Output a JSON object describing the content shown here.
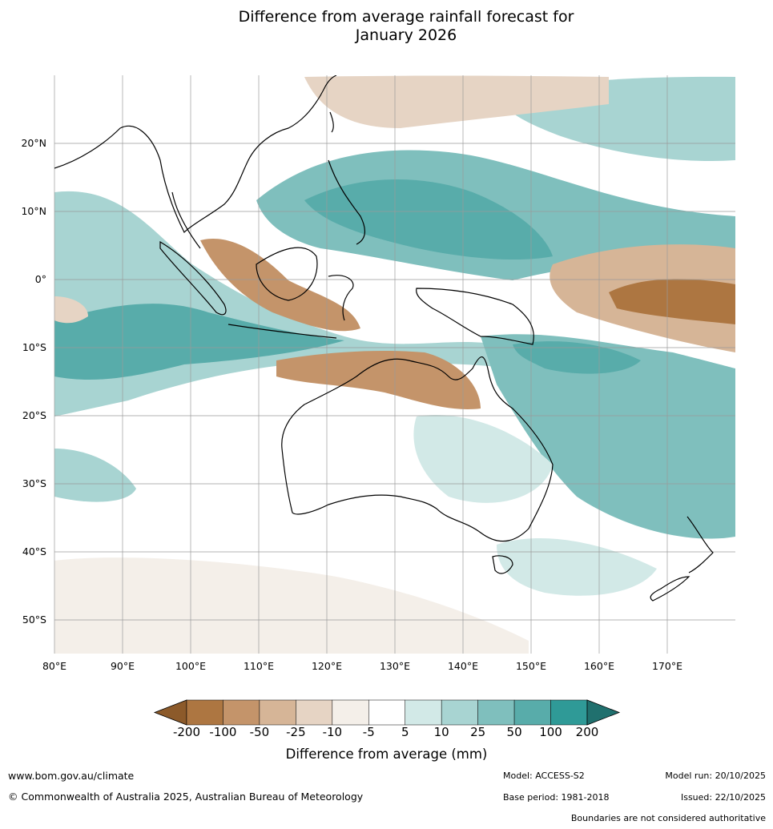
{
  "title": {
    "line1": "Difference from average rainfall forecast for",
    "line2": "January 2026"
  },
  "map": {
    "region": "Indo-Pacific and Australia",
    "lon_range": [
      80,
      180
    ],
    "lat_range": [
      -55,
      30
    ],
    "lon_ticks": [
      "80°E",
      "90°E",
      "100°E",
      "110°E",
      "120°E",
      "130°E",
      "140°E",
      "150°E",
      "160°E",
      "170°E"
    ],
    "lat_ticks": [
      "20°N",
      "10°N",
      "0°",
      "10°S",
      "20°S",
      "30°S",
      "40°S",
      "50°S"
    ]
  },
  "colorbar": {
    "tick_labels": [
      "-200",
      "-100",
      "-50",
      "-25",
      "-10",
      "-5",
      "5",
      "10",
      "25",
      "50",
      "100",
      "200"
    ],
    "colors": [
      "#8c5a2a",
      "#ad7641",
      "#c4946a",
      "#d6b597",
      "#e6d4c4",
      "#f4efe9",
      "#ffffff",
      "#d2e9e7",
      "#a8d4d2",
      "#7fbfbd",
      "#58acaa",
      "#2f9a97",
      "#20706e"
    ],
    "title": "Difference from average (mm)"
  },
  "footer": {
    "website": "www.bom.gov.au/climate",
    "copyright": "© Commonwealth of Australia 2025, Australian Bureau of Meteorology",
    "model": "Model: ACCESS-S2",
    "base_period": "Base period: 1981-2018",
    "model_run": "Model run: 20/10/2025",
    "issued": "Issued: 22/10/2025",
    "disclaimer": "Boundaries are not considered authoritative"
  }
}
